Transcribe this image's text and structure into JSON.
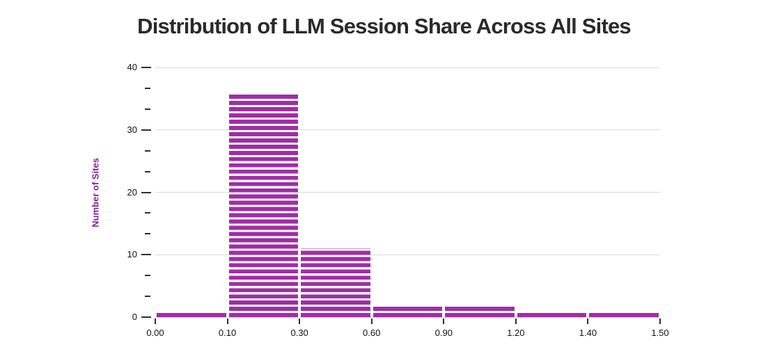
{
  "chart_data": {
    "type": "bar",
    "subtype": "histogram",
    "title": "Distribution of LLM Session Share Across All Sites",
    "xlabel": "",
    "ylabel": "Number of Sites",
    "bin_edges": [
      0.0,
      0.1,
      0.3,
      0.6,
      0.9,
      1.2,
      1.4,
      1.5
    ],
    "x_tick_labels": [
      "0.00",
      "0.10",
      "0.30",
      "0.60",
      "0.90",
      "1.20",
      "1.40",
      "1.50"
    ],
    "values": [
      1,
      36,
      11,
      2,
      2,
      1,
      1
    ],
    "ylim": [
      0,
      40
    ],
    "y_major_ticks": [
      0,
      10,
      20,
      30,
      40
    ],
    "y_minor_ticks": [
      3.33,
      6.67,
      13.33,
      16.67,
      23.33,
      26.67,
      33.33,
      36.67
    ],
    "grid": "horizontal-major",
    "legend": "none",
    "bar_pattern": "horizontal-stripes",
    "colors": {
      "bar": "#a02da6",
      "axis_label": "#8a1b9e",
      "title": "#2a2a2a"
    }
  }
}
